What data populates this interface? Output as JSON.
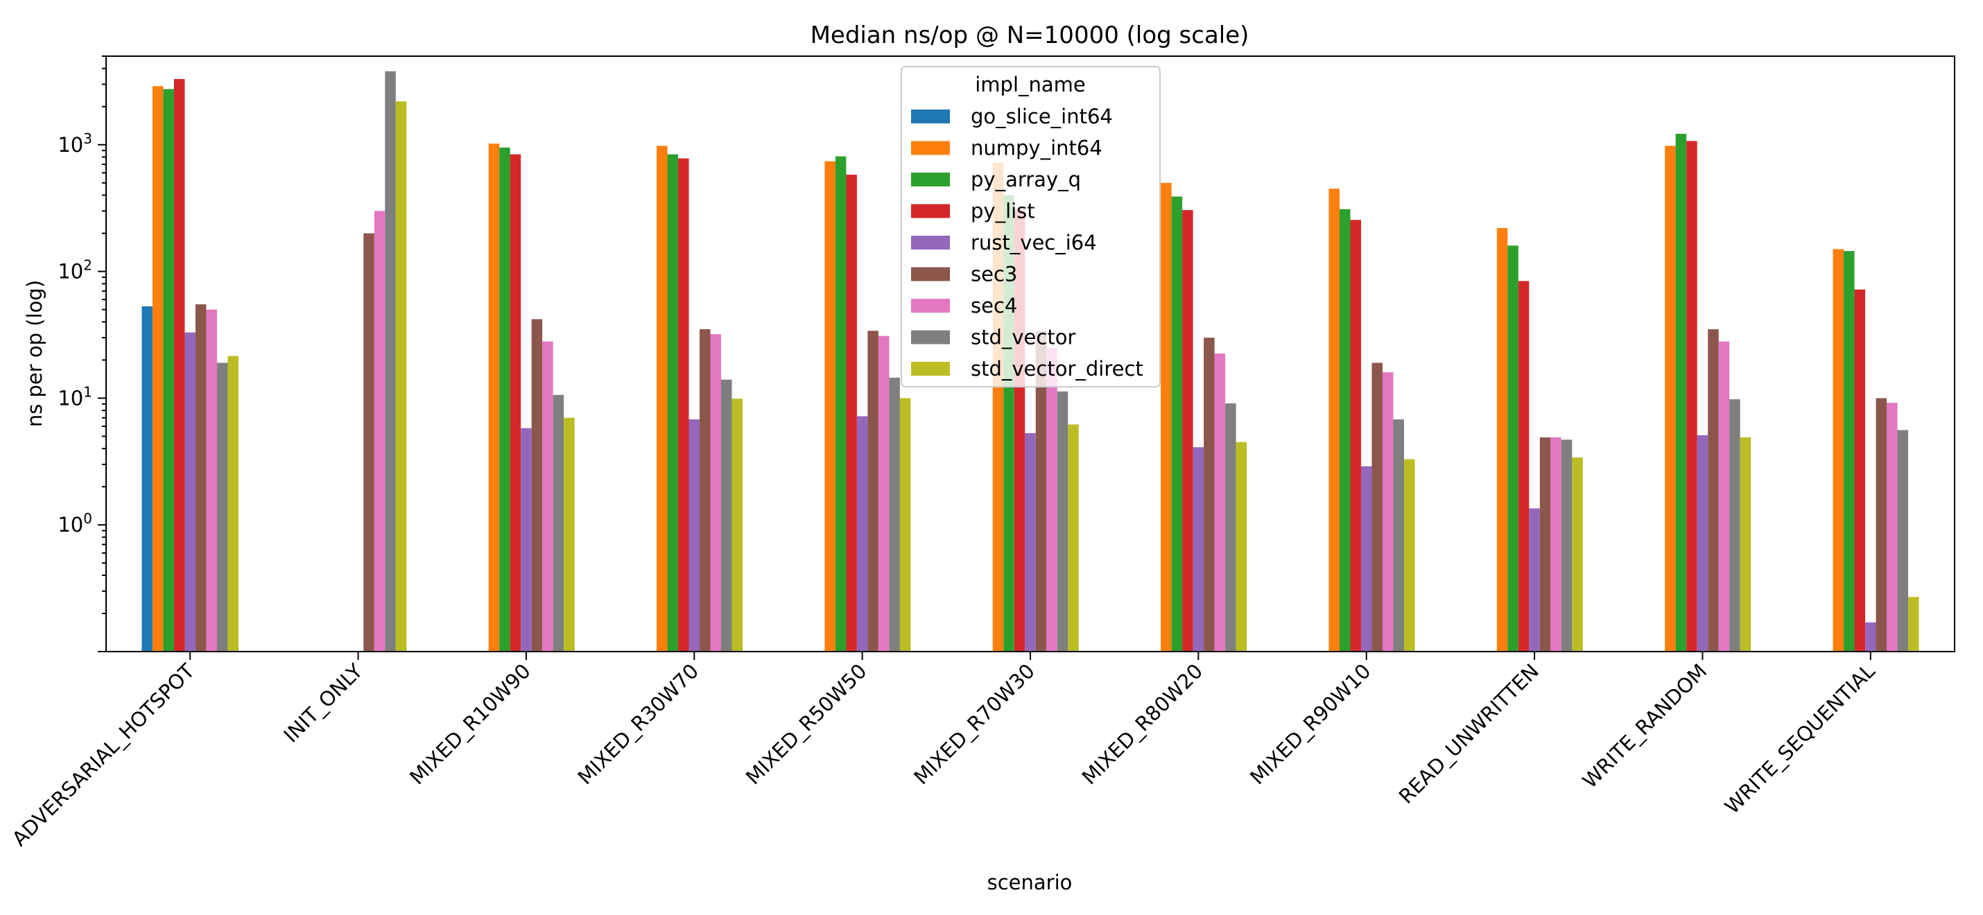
{
  "chart_data": {
    "type": "bar",
    "title": "Median ns/op @ N=10000 (log scale)",
    "xlabel": "scenario",
    "ylabel": "ns per op (log)",
    "yscale": "log",
    "ylim": [
      0.1,
      5000
    ],
    "grid": false,
    "legend_title": "impl_name",
    "legend_position": "top-center",
    "categories": [
      "ADVERSARIAL_HOTSPOT",
      "INIT_ONLY",
      "MIXED_R10W90",
      "MIXED_R30W70",
      "MIXED_R50W50",
      "MIXED_R70W30",
      "MIXED_R80W20",
      "MIXED_R90W10",
      "READ_UNWRITTEN",
      "WRITE_RANDOM",
      "WRITE_SEQUENTIAL"
    ],
    "y_ticks": [
      {
        "value": 1,
        "label": "10^0"
      },
      {
        "value": 10,
        "label": "10^1"
      },
      {
        "value": 100,
        "label": "10^2"
      },
      {
        "value": 1000,
        "label": "10^3"
      }
    ],
    "series": [
      {
        "name": "go_slice_int64",
        "color": "#1f77b4",
        "values": [
          53,
          null,
          null,
          null,
          null,
          null,
          null,
          null,
          null,
          null,
          null
        ]
      },
      {
        "name": "numpy_int64",
        "color": "#ff7f0e",
        "values": [
          2900,
          null,
          1020,
          980,
          740,
          720,
          500,
          450,
          220,
          980,
          150
        ]
      },
      {
        "name": "py_array_q",
        "color": "#2ca02c",
        "values": [
          2750,
          null,
          950,
          840,
          810,
          400,
          390,
          310,
          160,
          1220,
          145
        ]
      },
      {
        "name": "py_list",
        "color": "#d62728",
        "values": [
          3300,
          null,
          840,
          780,
          580,
          310,
          305,
          255,
          84,
          1070,
          72
        ]
      },
      {
        "name": "rust_vec_i64",
        "color": "#9467bd",
        "values": [
          33,
          null,
          5.8,
          6.8,
          7.2,
          5.3,
          4.1,
          2.9,
          1.35,
          5.1,
          0.17
        ]
      },
      {
        "name": "sec3",
        "color": "#8c564b",
        "values": [
          55,
          200,
          42,
          35,
          34,
          34,
          30,
          19,
          4.9,
          35,
          10
        ]
      },
      {
        "name": "sec4",
        "color": "#e377c2",
        "values": [
          50,
          300,
          28,
          32,
          31,
          25,
          22.5,
          16,
          4.9,
          28,
          9.2
        ]
      },
      {
        "name": "std_vector",
        "color": "#7f7f7f",
        "values": [
          19,
          3800,
          10.6,
          14,
          14.5,
          11.3,
          9.1,
          6.8,
          4.7,
          9.8,
          5.6
        ]
      },
      {
        "name": "std_vector_direct",
        "color": "#bcbd22",
        "values": [
          21.5,
          2200,
          7,
          9.9,
          10,
          6.2,
          4.5,
          3.3,
          3.4,
          4.9,
          0.27
        ]
      }
    ]
  }
}
